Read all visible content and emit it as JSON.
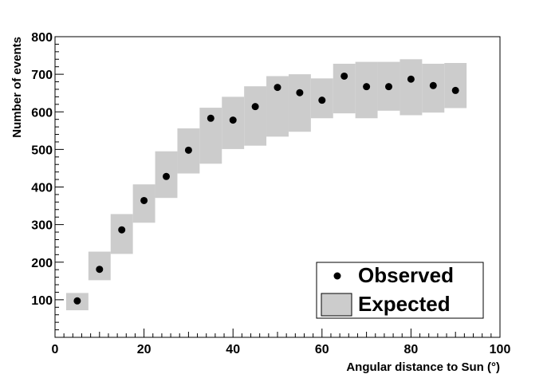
{
  "chart_data": {
    "type": "scatter",
    "title": "",
    "xlabel": "Angular distance to Sun (°)",
    "ylabel": "Number of events",
    "xlim": [
      0,
      100
    ],
    "ylim": [
      0,
      800
    ],
    "x_ticks": [
      0,
      20,
      40,
      60,
      80,
      100
    ],
    "y_ticks": [
      100,
      200,
      300,
      400,
      500,
      600,
      700,
      800
    ],
    "grid": false,
    "legend_position": "bottom-right",
    "bin_width": 5,
    "series": [
      {
        "name": "Observed",
        "type": "points",
        "color": "#000000",
        "x": [
          5,
          10,
          15,
          20,
          25,
          30,
          35,
          40,
          45,
          50,
          55,
          60,
          65,
          70,
          75,
          80,
          85,
          90
        ],
        "y": [
          97,
          181,
          286,
          364,
          428,
          498,
          583,
          578,
          614,
          665,
          651,
          631,
          695,
          667,
          667,
          687,
          670,
          657
        ]
      },
      {
        "name": "Expected",
        "type": "band",
        "color": "#cccccc",
        "x": [
          5,
          10,
          15,
          20,
          25,
          30,
          35,
          40,
          45,
          50,
          55,
          60,
          65,
          70,
          75,
          80,
          85,
          90
        ],
        "low": [
          72,
          152,
          222,
          305,
          371,
          436,
          462,
          501,
          510,
          534,
          547,
          583,
          596,
          583,
          603,
          591,
          598,
          610
        ],
        "high": [
          118,
          228,
          328,
          407,
          495,
          556,
          611,
          640,
          668,
          695,
          700,
          689,
          728,
          733,
          733,
          740,
          728,
          730
        ]
      }
    ]
  }
}
